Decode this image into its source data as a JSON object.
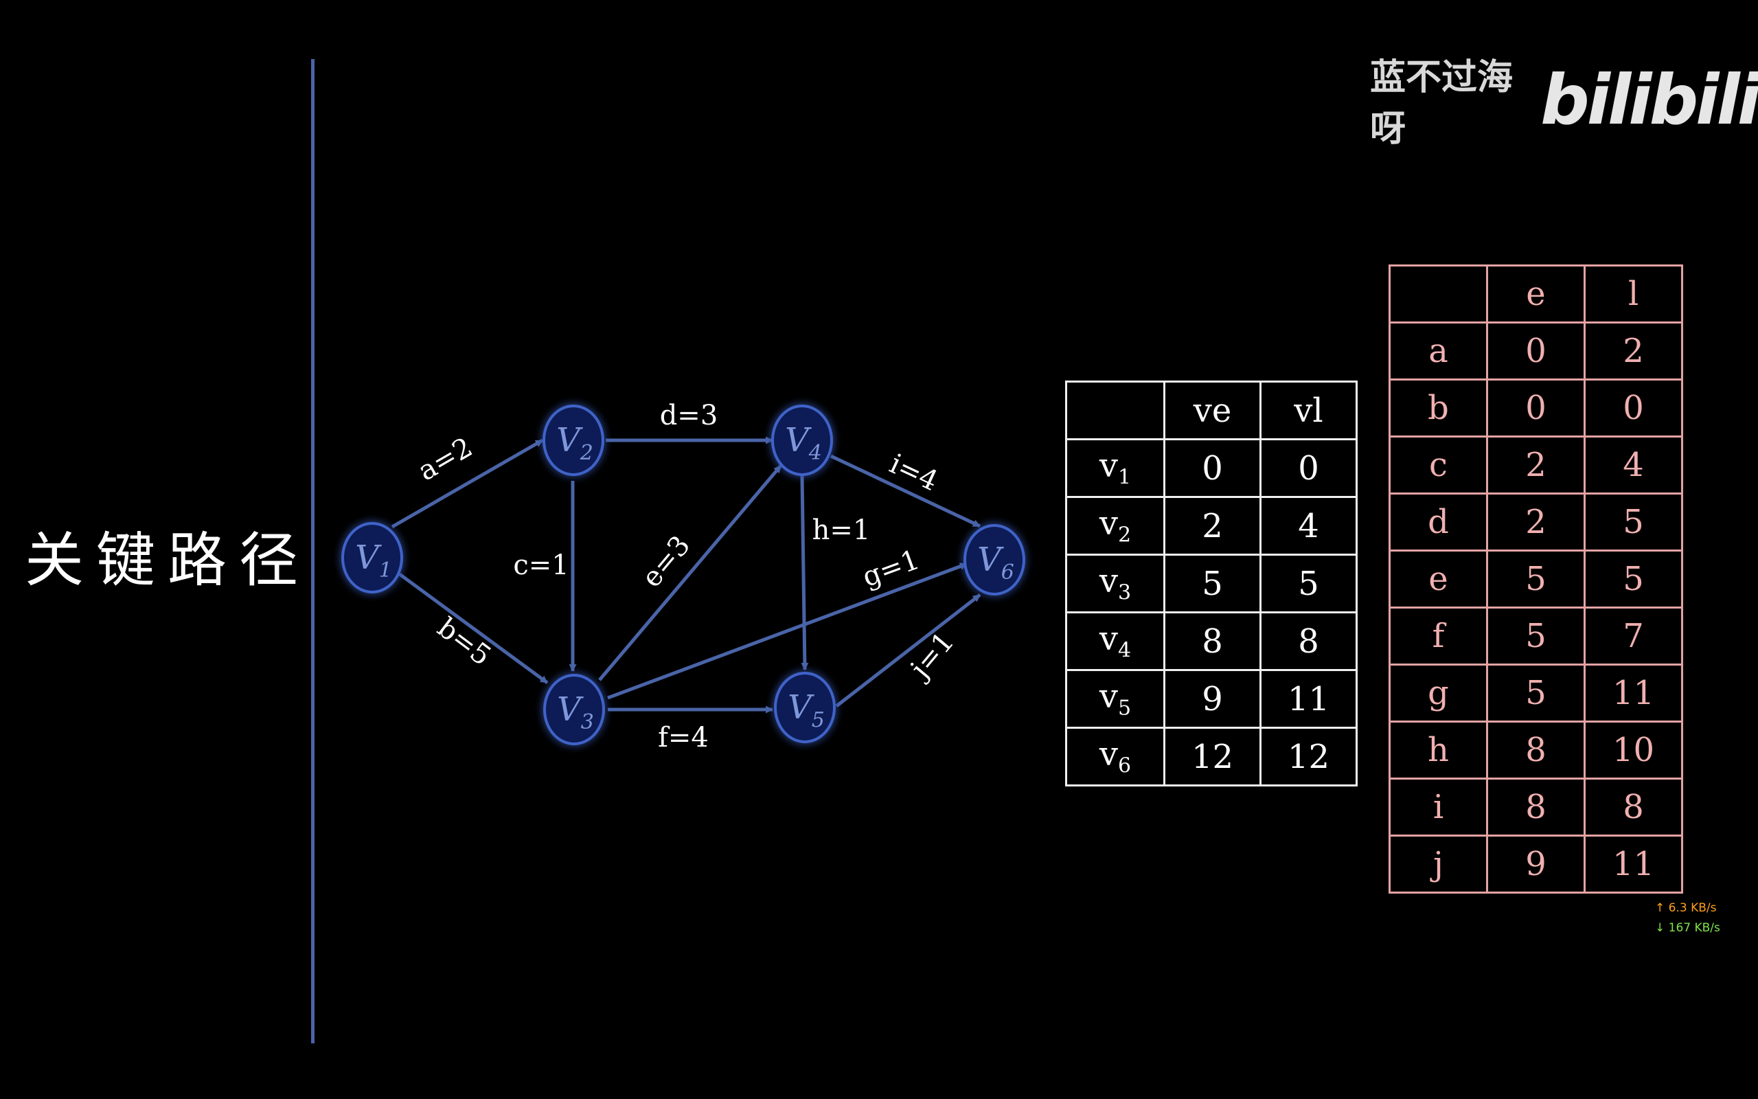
{
  "title": "关键路径",
  "watermark": {
    "author": "蓝不过海呀",
    "brand": "bilibili"
  },
  "colors": {
    "accent": "#4a64a8",
    "vertex_fill": "#0d1d57",
    "pink": "#f1b0b0",
    "net_up": "#ff9f1c",
    "net_down": "#7ee34a"
  },
  "graph": {
    "vertices": [
      {
        "id": "V1",
        "letter": "V",
        "sub": "1"
      },
      {
        "id": "V2",
        "letter": "V",
        "sub": "2"
      },
      {
        "id": "V3",
        "letter": "V",
        "sub": "3"
      },
      {
        "id": "V4",
        "letter": "V",
        "sub": "4"
      },
      {
        "id": "V5",
        "letter": "V",
        "sub": "5"
      },
      {
        "id": "V6",
        "letter": "V",
        "sub": "6"
      }
    ],
    "edges": [
      {
        "from": "V1",
        "to": "V2",
        "label": "a=2"
      },
      {
        "from": "V1",
        "to": "V3",
        "label": "b=5"
      },
      {
        "from": "V2",
        "to": "V3",
        "label": "c=1"
      },
      {
        "from": "V2",
        "to": "V4",
        "label": "d=3"
      },
      {
        "from": "V3",
        "to": "V4",
        "label": "e=3"
      },
      {
        "from": "V3",
        "to": "V5",
        "label": "f=4"
      },
      {
        "from": "V3",
        "to": "V6",
        "label": "g=1"
      },
      {
        "from": "V4",
        "to": "V5",
        "label": "h=1"
      },
      {
        "from": "V4",
        "to": "V6",
        "label": "i=4"
      },
      {
        "from": "V5",
        "to": "V6",
        "label": "j=1"
      }
    ]
  },
  "vertex_table": {
    "headers": [
      "",
      "ve",
      "vl"
    ],
    "rows": [
      {
        "letter": "v",
        "sub": "1",
        "ve": "0",
        "vl": "0"
      },
      {
        "letter": "v",
        "sub": "2",
        "ve": "2",
        "vl": "4"
      },
      {
        "letter": "v",
        "sub": "3",
        "ve": "5",
        "vl": "5"
      },
      {
        "letter": "v",
        "sub": "4",
        "ve": "8",
        "vl": "8"
      },
      {
        "letter": "v",
        "sub": "5",
        "ve": "9",
        "vl": "11"
      },
      {
        "letter": "v",
        "sub": "6",
        "ve": "12",
        "vl": "12"
      }
    ]
  },
  "edge_table": {
    "headers": [
      "",
      "e",
      "l"
    ],
    "rows": [
      {
        "name": "a",
        "e": "0",
        "l": "2"
      },
      {
        "name": "b",
        "e": "0",
        "l": "0"
      },
      {
        "name": "c",
        "e": "2",
        "l": "4"
      },
      {
        "name": "d",
        "e": "2",
        "l": "5"
      },
      {
        "name": "e",
        "e": "5",
        "l": "5"
      },
      {
        "name": "f",
        "e": "5",
        "l": "7"
      },
      {
        "name": "g",
        "e": "5",
        "l": "11"
      },
      {
        "name": "h",
        "e": "8",
        "l": "10"
      },
      {
        "name": "i",
        "e": "8",
        "l": "8"
      },
      {
        "name": "j",
        "e": "9",
        "l": "11"
      }
    ]
  },
  "network": {
    "up": "↑ 6.3 KB/s",
    "down": "↓ 167 KB/s"
  }
}
